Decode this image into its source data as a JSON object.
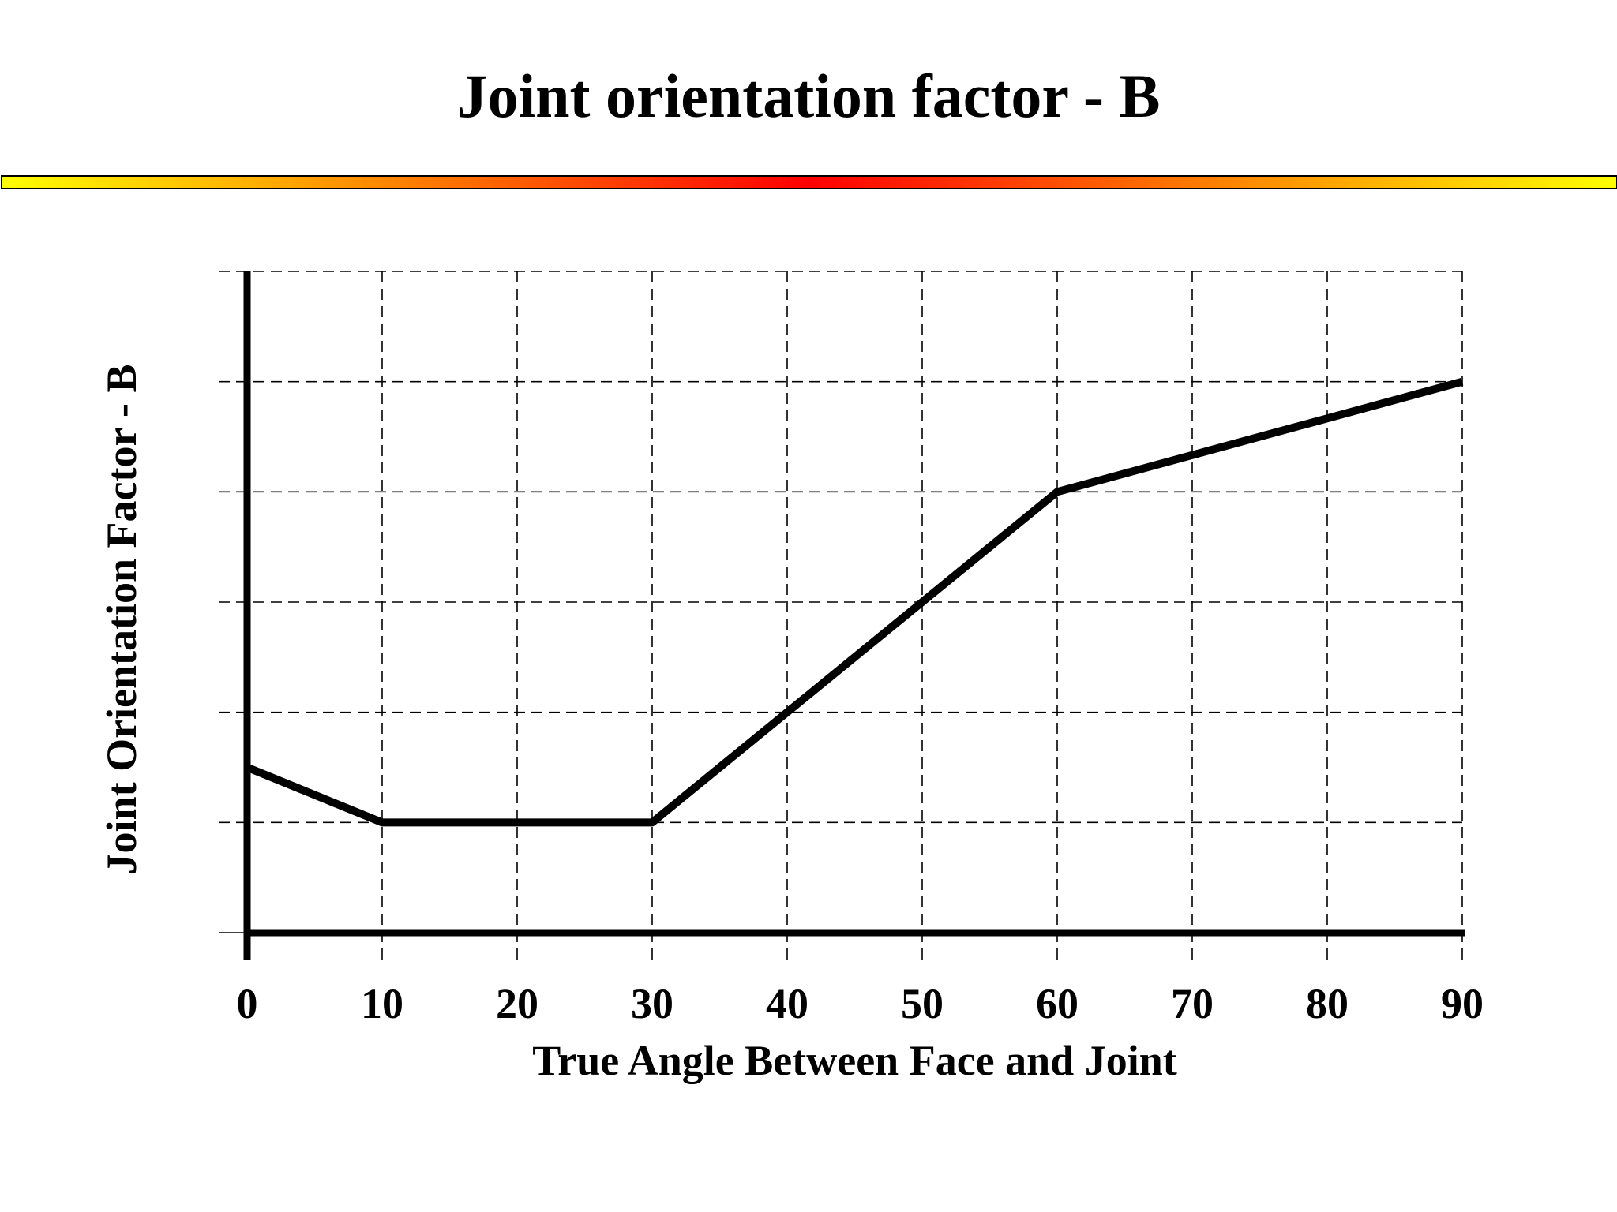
{
  "slide": {
    "title": "Joint orientation factor - B"
  },
  "colors": {
    "bar_edge": "#ffff00",
    "bar_mid": "#ff0000",
    "line": "#000000",
    "grid": "#000000"
  },
  "chart_data": {
    "type": "line",
    "title": "",
    "xlabel": "True Angle Between Face and Joint",
    "ylabel": "Joint Orientation Factor - B",
    "xlim": [
      0,
      90
    ],
    "ylim": [
      0,
      6
    ],
    "xticks": [
      0,
      10,
      20,
      30,
      40,
      50,
      60,
      70,
      80,
      90
    ],
    "xtick_labels": [
      "0",
      "10",
      "20",
      "30",
      "40",
      "50",
      "60",
      "70",
      "80",
      "90"
    ],
    "yticks": [
      0,
      1,
      2,
      3,
      4,
      5,
      6
    ],
    "grid": true,
    "grid_style": "dashed",
    "legend": "none",
    "series": [
      {
        "x": [
          0,
          10,
          30,
          60,
          90
        ],
        "y": [
          1.5,
          1,
          1,
          4,
          5
        ]
      }
    ]
  }
}
